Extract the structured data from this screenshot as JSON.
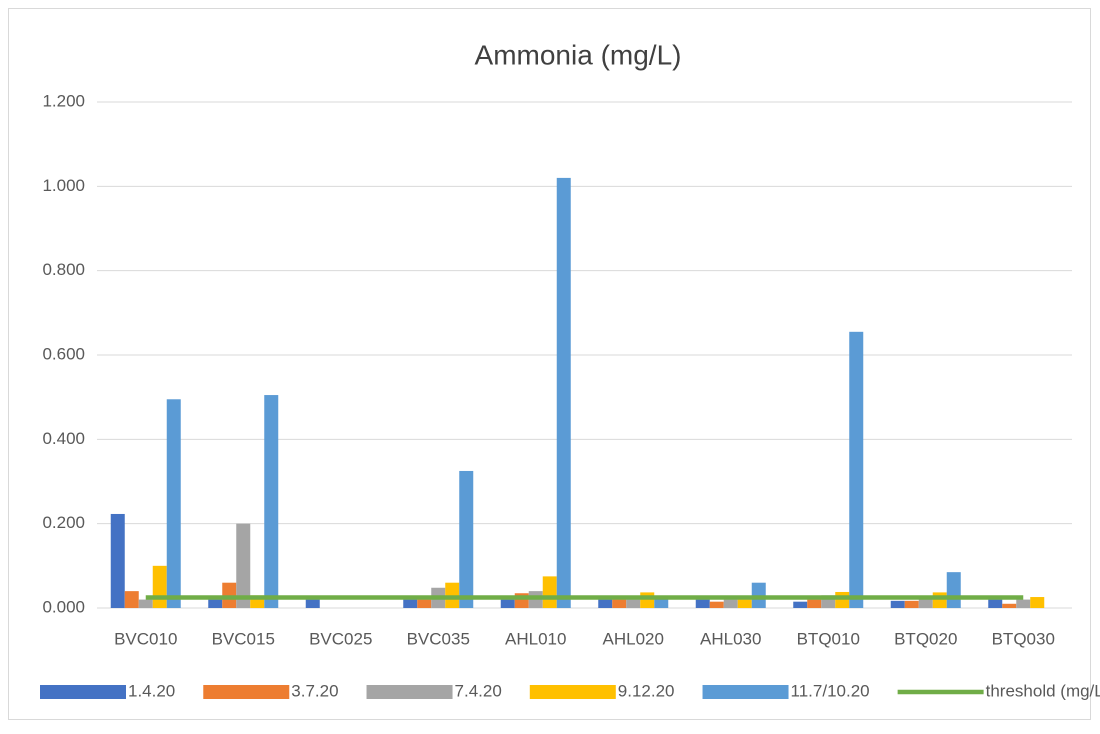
{
  "chart_data": {
    "type": "bar",
    "title": "Ammonia (mg/L)",
    "categories": [
      "BVC010",
      "BVC015",
      "BVC025",
      "BVC035",
      "AHL010",
      "AHL020",
      "AHL030",
      "BTQ010",
      "BTQ020",
      "BTQ030"
    ],
    "series": [
      {
        "name": "1.4.20",
        "color": "#4472c4",
        "values": [
          0.223,
          0.02,
          0.02,
          0.02,
          0.02,
          0.02,
          0.02,
          0.015,
          0.017,
          0.02
        ]
      },
      {
        "name": "3.7.20",
        "color": "#ed7d31",
        "values": [
          0.04,
          0.06,
          null,
          0.02,
          0.035,
          0.02,
          0.015,
          0.02,
          0.017,
          0.01
        ]
      },
      {
        "name": "7.4.20",
        "color": "#a5a5a5",
        "values": [
          0.02,
          0.2,
          null,
          0.048,
          0.04,
          0.02,
          0.02,
          0.03,
          0.025,
          0.02
        ]
      },
      {
        "name": "9.12.20",
        "color": "#ffc000",
        "values": [
          0.1,
          0.03,
          null,
          0.06,
          0.075,
          0.037,
          0.02,
          0.038,
          0.037,
          0.026
        ]
      },
      {
        "name": "11.7/10.20",
        "color": "#5b9bd5",
        "values": [
          0.495,
          0.505,
          null,
          0.325,
          1.02,
          0.025,
          0.06,
          0.655,
          0.085,
          null
        ]
      },
      {
        "name": "threshold (mg/L)",
        "color": "#70ad47",
        "type": "line",
        "values": [
          0.025,
          0.025,
          0.025,
          0.025,
          0.025,
          0.025,
          0.025,
          0.025,
          0.025,
          0.025
        ]
      }
    ],
    "ylim": [
      0,
      1.2
    ],
    "yticks": [
      {
        "value": 0,
        "label": "0.000"
      },
      {
        "value": 0.2,
        "label": "0.200"
      },
      {
        "value": 0.4,
        "label": "0.400"
      },
      {
        "value": 0.6,
        "label": "0.600"
      },
      {
        "value": 0.8,
        "label": "0.800"
      },
      {
        "value": 1.0,
        "label": "1.000"
      },
      {
        "value": 1.2,
        "label": "1.200"
      }
    ],
    "grid": true,
    "legend": "bottom"
  }
}
